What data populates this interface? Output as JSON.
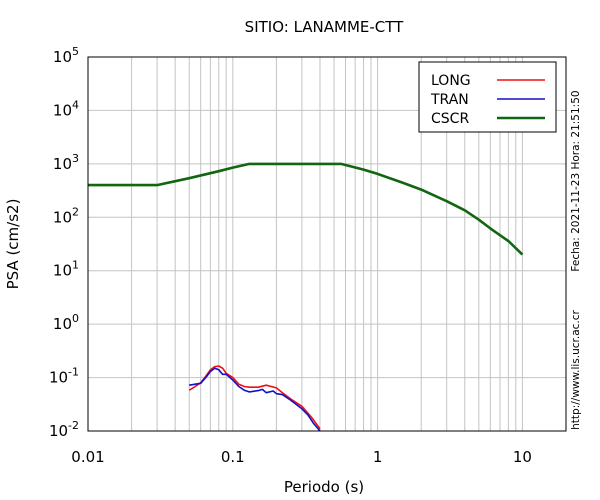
{
  "chart_data": {
    "type": "line",
    "title": "SITIO: LANAMME-CTT",
    "xlabel": "Periodo (s)",
    "ylabel": "PSA (cm/s2)",
    "x_scale": "log",
    "y_scale": "log",
    "xlim": [
      0.01,
      20
    ],
    "ylim": [
      0.01,
      100000
    ],
    "grid": true,
    "legend_position": "top-right",
    "x_ticks": [
      {
        "value": 0.01,
        "label": "0.01"
      },
      {
        "value": 0.1,
        "label": "0.1"
      },
      {
        "value": 1,
        "label": "1"
      },
      {
        "value": 10,
        "label": "10"
      }
    ],
    "y_ticks": [
      {
        "value": 0.01,
        "base": "10",
        "exp": "-2"
      },
      {
        "value": 0.1,
        "base": "10",
        "exp": "-1"
      },
      {
        "value": 1,
        "base": "10",
        "exp": "0"
      },
      {
        "value": 10,
        "base": "10",
        "exp": "1"
      },
      {
        "value": 100,
        "base": "10",
        "exp": "2"
      },
      {
        "value": 1000,
        "base": "10",
        "exp": "3"
      },
      {
        "value": 10000,
        "base": "10",
        "exp": "4"
      },
      {
        "value": 100000,
        "base": "10",
        "exp": "5"
      }
    ],
    "series": [
      {
        "name": "LONG",
        "color": "#ee1111",
        "points": [
          [
            0.05,
            0.058
          ],
          [
            0.055,
            0.068
          ],
          [
            0.06,
            0.08
          ],
          [
            0.065,
            0.105
          ],
          [
            0.07,
            0.14
          ],
          [
            0.075,
            0.16
          ],
          [
            0.08,
            0.165
          ],
          [
            0.085,
            0.15
          ],
          [
            0.09,
            0.12
          ],
          [
            0.1,
            0.1
          ],
          [
            0.11,
            0.075
          ],
          [
            0.12,
            0.068
          ],
          [
            0.13,
            0.066
          ],
          [
            0.15,
            0.066
          ],
          [
            0.17,
            0.072
          ],
          [
            0.2,
            0.064
          ],
          [
            0.22,
            0.052
          ],
          [
            0.25,
            0.04
          ],
          [
            0.3,
            0.029
          ],
          [
            0.35,
            0.018
          ],
          [
            0.4,
            0.011
          ]
        ]
      },
      {
        "name": "TRAN",
        "color": "#1111cc",
        "points": [
          [
            0.05,
            0.072
          ],
          [
            0.055,
            0.075
          ],
          [
            0.06,
            0.078
          ],
          [
            0.065,
            0.1
          ],
          [
            0.07,
            0.13
          ],
          [
            0.075,
            0.15
          ],
          [
            0.08,
            0.14
          ],
          [
            0.085,
            0.115
          ],
          [
            0.09,
            0.115
          ],
          [
            0.1,
            0.09
          ],
          [
            0.11,
            0.068
          ],
          [
            0.12,
            0.058
          ],
          [
            0.13,
            0.054
          ],
          [
            0.15,
            0.057
          ],
          [
            0.16,
            0.06
          ],
          [
            0.17,
            0.052
          ],
          [
            0.19,
            0.056
          ],
          [
            0.2,
            0.05
          ],
          [
            0.22,
            0.048
          ],
          [
            0.25,
            0.038
          ],
          [
            0.3,
            0.026
          ],
          [
            0.33,
            0.02
          ],
          [
            0.36,
            0.014
          ],
          [
            0.4,
            0.01
          ]
        ]
      },
      {
        "name": "CSCR",
        "color": "#116611",
        "points": [
          [
            0.01,
            400
          ],
          [
            0.02,
            400
          ],
          [
            0.03,
            400
          ],
          [
            0.05,
            540
          ],
          [
            0.08,
            730
          ],
          [
            0.1,
            850
          ],
          [
            0.13,
            1000
          ],
          [
            0.2,
            1000
          ],
          [
            0.3,
            1000
          ],
          [
            0.5,
            1000
          ],
          [
            0.56,
            1000
          ],
          [
            0.8,
            780
          ],
          [
            1,
            650
          ],
          [
            1.5,
            440
          ],
          [
            2,
            330
          ],
          [
            3,
            200
          ],
          [
            4,
            135
          ],
          [
            5,
            90
          ],
          [
            6,
            62
          ],
          [
            8,
            36
          ],
          [
            10,
            20
          ]
        ]
      }
    ]
  },
  "side_text": {
    "datetime": "Fecha: 2021-11-23 Hora: 21:51:50",
    "url": "http://www.lis.ucr.ac.cr"
  }
}
